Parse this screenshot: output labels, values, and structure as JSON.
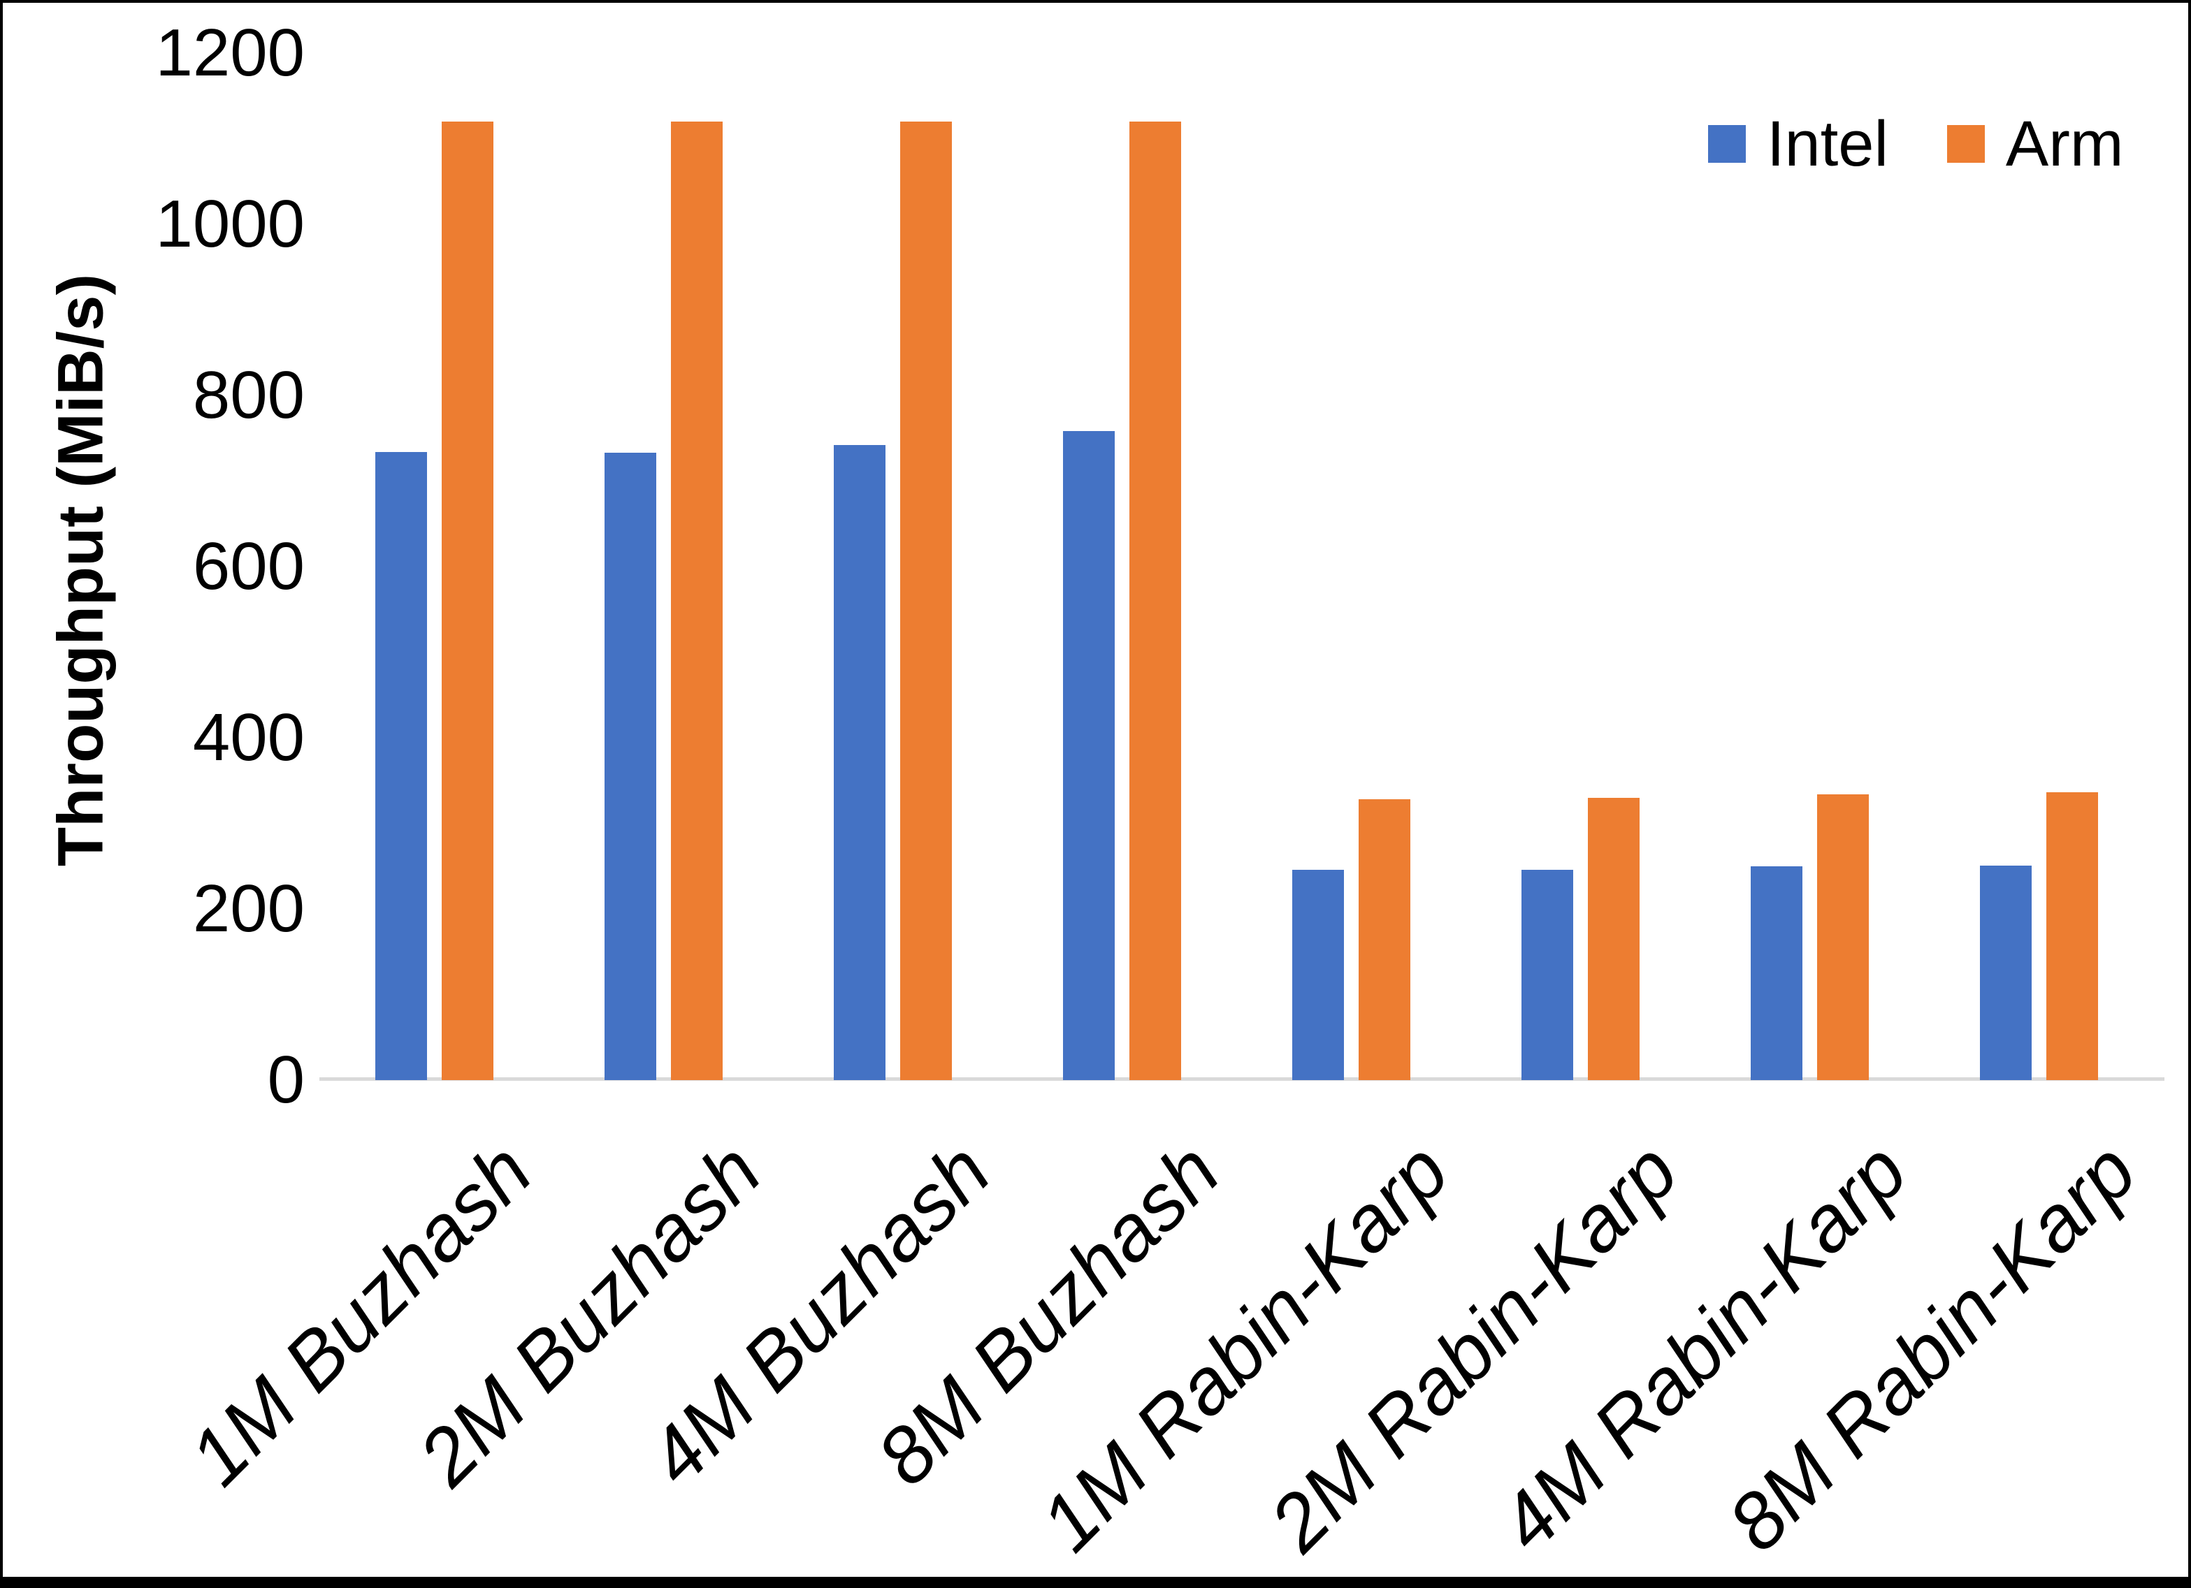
{
  "chart_data": {
    "type": "bar",
    "title": "",
    "xlabel": "",
    "ylabel": "Throughput (MiB/s)",
    "ylim": [
      0,
      1200
    ],
    "yticks": [
      0,
      200,
      400,
      600,
      800,
      1000,
      1200
    ],
    "grid": false,
    "legend_position": "top-right",
    "categories": [
      "1M Buzhash",
      "2M Buzhash",
      "4M Buzhash",
      "8M Buzhash",
      "1M Rabin-Karp",
      "2M Rabin-Karp",
      "4M Rabin-Karp",
      "8M Rabin-Karp"
    ],
    "series": [
      {
        "name": "Intel",
        "color": "#4472C4",
        "values": [
          734,
          733,
          742,
          758,
          246,
          246,
          250,
          251
        ]
      },
      {
        "name": "Arm",
        "color": "#ED7D31",
        "values": [
          1120,
          1120,
          1120,
          1120,
          328,
          330,
          334,
          336
        ]
      }
    ],
    "axis_line_color": "#D9D9D9",
    "text_color": "#000000"
  }
}
